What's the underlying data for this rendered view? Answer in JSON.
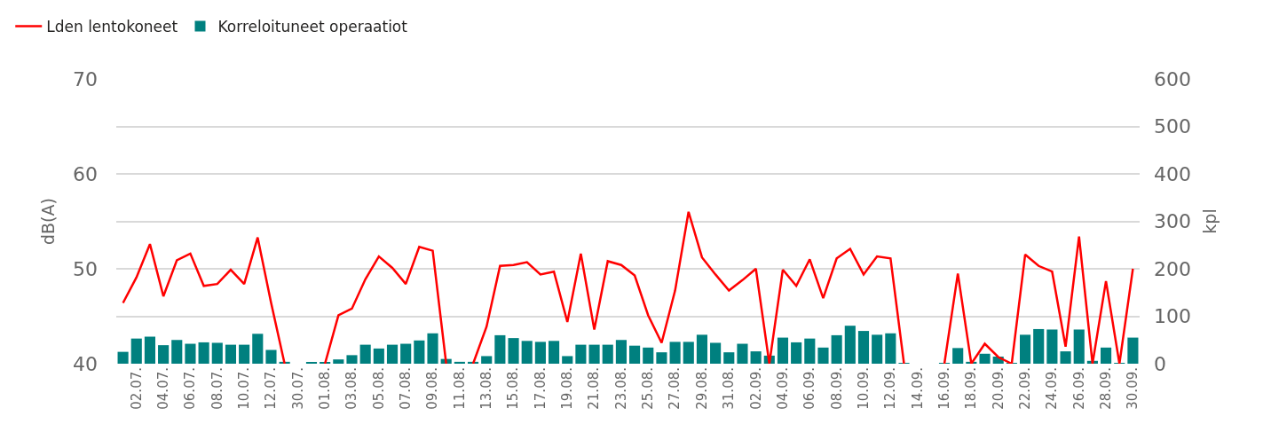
{
  "chart_data": {
    "type": "line",
    "categories": [
      null,
      "02.07.",
      null,
      "04.07.",
      null,
      "06.07.",
      null,
      "08.07.",
      null,
      "10.07.",
      null,
      "12.07.",
      null,
      "30.07.",
      null,
      "01.08.",
      null,
      "03.08.",
      null,
      "05.08.",
      null,
      "07.08.",
      null,
      "09.08.",
      null,
      "11.08.",
      null,
      "13.08.",
      null,
      "15.08.",
      null,
      "17.08.",
      null,
      "19.08.",
      null,
      "21.08.",
      null,
      "23.08.",
      null,
      "25.08.",
      null,
      "27.08.",
      null,
      "29.08.",
      null,
      "31.08.",
      null,
      "02.09.",
      null,
      "04.09.",
      null,
      "06.09.",
      null,
      "08.09.",
      null,
      "10.09.",
      null,
      "12.09.",
      null,
      "14.09.",
      null,
      "16.09.",
      null,
      "18.09.",
      null,
      "20.09.",
      null,
      "22.09.",
      null,
      "24.09.",
      null,
      "26.09.",
      null,
      "28.09.",
      null,
      "30.09."
    ],
    "series": [
      {
        "name": "Lden lentokoneet",
        "color": "#ff0000",
        "axis": "y",
        "values": [
          46.4,
          49.1,
          52.6,
          47.1,
          50.9,
          51.6,
          48.2,
          48.4,
          49.9,
          48.4,
          53.3,
          46.4,
          40,
          null,
          null,
          40,
          45.1,
          45.8,
          48.9,
          51.3,
          50.1,
          48.4,
          52.3,
          51.9,
          40,
          null,
          40,
          43.9,
          50.3,
          50.4,
          50.7,
          49.4,
          49.7,
          44.4,
          51.6,
          43.6,
          50.8,
          50.4,
          49.3,
          45.1,
          42.2,
          47.7,
          56.0,
          51.2,
          49.4,
          47.7,
          48.8,
          50.0,
          40,
          49.9,
          48.2,
          51.0,
          46.9,
          51.1,
          52.1,
          49.4,
          51.3,
          51.1,
          40,
          null,
          null,
          40,
          49.5,
          40,
          42.1,
          40.7,
          40,
          51.5,
          50.3,
          49.7,
          41.8,
          53.4,
          40,
          48.7,
          40,
          50.0
        ]
      },
      {
        "name": "Korreloituneet operaatiot",
        "type": "bar",
        "color": "#00807f",
        "axis": "y2",
        "values": [
          25,
          53,
          57,
          39,
          50,
          42,
          45,
          44,
          40,
          40,
          63,
          29,
          4,
          null,
          2,
          2,
          9,
          18,
          40,
          32,
          40,
          42,
          49,
          64,
          10,
          4,
          4,
          16,
          60,
          54,
          48,
          46,
          48,
          16,
          40,
          40,
          40,
          50,
          38,
          34,
          24,
          46,
          46,
          61,
          44,
          24,
          42,
          26,
          17,
          55,
          45,
          53,
          34,
          60,
          80,
          69,
          61,
          64,
          1,
          null,
          null,
          1,
          33,
          4,
          21,
          15,
          1,
          61,
          73,
          72,
          26,
          72,
          6,
          34,
          1,
          55
        ]
      }
    ],
    "ylabel": "dB(A)",
    "y2label": "kpl",
    "ylim": [
      40,
      70
    ],
    "yticks": [
      40,
      50,
      60,
      70
    ],
    "y2lim": [
      0,
      600
    ],
    "y2ticks": [
      0,
      100,
      200,
      300,
      400,
      500,
      600
    ],
    "grid": true,
    "legend": "top left"
  }
}
